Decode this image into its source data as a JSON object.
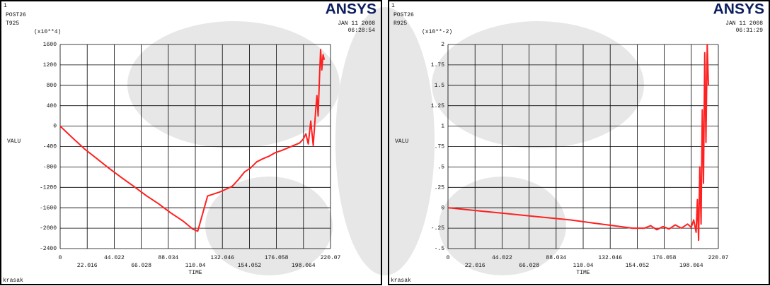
{
  "chart_data": [
    {
      "type": "line",
      "window_number": "1",
      "program": "POST26",
      "scale_label": "(x10**4)",
      "logo": "ANSYS",
      "date": "JAN 11 2008",
      "time": "06:28:54",
      "ylabel": "VALU",
      "xlabel": "TIME",
      "user": "krasak",
      "x": [
        0,
        10,
        20,
        30,
        40,
        50,
        60,
        70,
        80,
        90,
        100,
        108,
        112,
        120,
        130,
        140,
        145,
        150,
        155,
        160,
        165,
        170,
        175,
        180,
        185,
        190,
        195,
        198,
        200,
        202,
        204,
        206,
        208,
        209,
        210,
        211,
        212,
        213,
        214,
        215
      ],
      "series": [
        {
          "name": "T925",
          "color": "#ff2020",
          "values": [
            0,
            -230,
            -450,
            -640,
            -830,
            -1010,
            -1180,
            -1360,
            -1520,
            -1700,
            -1860,
            -2020,
            -2060,
            -1370,
            -1290,
            -1180,
            -1050,
            -900,
            -820,
            -700,
            -640,
            -590,
            -520,
            -480,
            -430,
            -380,
            -330,
            -250,
            -150,
            -350,
            100,
            -380,
            300,
            600,
            200,
            900,
            1500,
            1100,
            1400,
            1300
          ]
        }
      ],
      "xlim": [
        0,
        220.07
      ],
      "ylim": [
        -2400,
        1600
      ],
      "xticks": [
        0,
        22.016,
        44.022,
        66.028,
        88.034,
        110.04,
        132.046,
        154.052,
        176.058,
        198.064,
        220.07
      ],
      "yticks": [
        -2400,
        -2000,
        -1600,
        -1200,
        -800,
        -400,
        0,
        400,
        800,
        1200,
        1600
      ],
      "grid": true
    },
    {
      "type": "line",
      "window_number": "1",
      "program": "POST26",
      "scale_label": "(x10**-2)",
      "logo": "ANSYS",
      "date": "JAN 11 2008",
      "time": "06:31:29",
      "ylabel": "VALU",
      "xlabel": "TIME",
      "user": "krasak",
      "x": [
        0,
        20,
        40,
        60,
        80,
        100,
        120,
        140,
        150,
        160,
        165,
        170,
        175,
        180,
        185,
        190,
        195,
        198,
        200,
        202,
        203,
        204,
        205,
        206,
        207,
        208,
        209,
        210,
        211,
        212
      ],
      "series": [
        {
          "name": "R925",
          "color": "#ff2020",
          "values": [
            0,
            -0.03,
            -0.06,
            -0.09,
            -0.12,
            -0.15,
            -0.19,
            -0.23,
            -0.25,
            -0.25,
            -0.22,
            -0.27,
            -0.23,
            -0.26,
            -0.21,
            -0.25,
            -0.2,
            -0.24,
            -0.15,
            -0.3,
            0.1,
            -0.4,
            0.5,
            -0.2,
            1.2,
            0.3,
            1.9,
            0.8,
            2,
            1.5
          ]
        }
      ],
      "xlim": [
        0,
        220.07
      ],
      "ylim": [
        -0.5,
        2
      ],
      "xticks": [
        0,
        22.016,
        44.022,
        66.028,
        88.034,
        110.04,
        132.046,
        154.052,
        176.058,
        198.064,
        220.07
      ],
      "yticks": [
        {
          "value": -0.5,
          "label": "-.5"
        },
        {
          "value": -0.25,
          "label": "-.25"
        },
        0,
        {
          "value": 0.25,
          "label": ".25"
        },
        {
          "value": 0.5,
          "label": ".5"
        },
        {
          "value": 0.75,
          "label": ".75"
        },
        1,
        1.25,
        1.5,
        1.75,
        2
      ],
      "grid": true
    }
  ]
}
